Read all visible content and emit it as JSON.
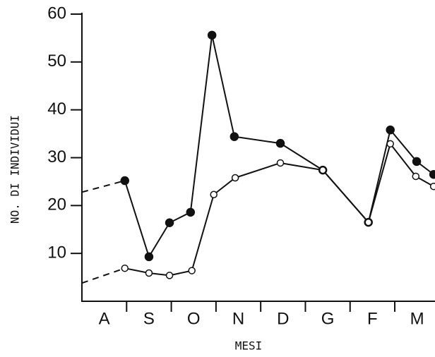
{
  "chart_data": {
    "type": "line",
    "x_label": "MESI",
    "y_label": "NO. DI INDIVIDUI",
    "xlim": [
      0,
      7.9
    ],
    "xticks": [
      {
        "value": 0.5,
        "label": "A"
      },
      {
        "value": 1.5,
        "label": "S"
      },
      {
        "value": 2.5,
        "label": "O"
      },
      {
        "value": 3.5,
        "label": "N"
      },
      {
        "value": 4.5,
        "label": "D"
      },
      {
        "value": 5.5,
        "label": "G"
      },
      {
        "value": 6.5,
        "label": "F"
      },
      {
        "value": 7.5,
        "label": "M"
      }
    ],
    "x_boundary_ticks": [
      1,
      2,
      3,
      4,
      5,
      6,
      7
    ],
    "ylim": [
      0,
      60
    ],
    "yticks": [
      10,
      20,
      30,
      40,
      50,
      60
    ],
    "leading_segment_dashed": true,
    "series": [
      {
        "marker": "filled",
        "color": "#111",
        "x": [
          0,
          0.96,
          1.5,
          1.96,
          2.43,
          2.91,
          3.41,
          4.44,
          5.39,
          6.41,
          6.9,
          7.49,
          7.87
        ],
        "values": [
          22.8,
          25.2,
          9.3,
          16.4,
          18.6,
          55.6,
          34.4,
          33.0,
          27.4,
          16.5,
          35.8,
          29.2,
          26.5
        ]
      },
      {
        "marker": "open",
        "color": "#111",
        "x": [
          0,
          0.96,
          1.5,
          1.96,
          2.46,
          2.95,
          3.43,
          4.44,
          5.39,
          6.41,
          6.9,
          7.47,
          7.87
        ],
        "values": [
          3.8,
          6.9,
          5.9,
          5.4,
          6.4,
          22.3,
          25.8,
          28.9,
          27.4,
          16.5,
          32.9,
          26.1,
          24.0
        ]
      }
    ]
  }
}
